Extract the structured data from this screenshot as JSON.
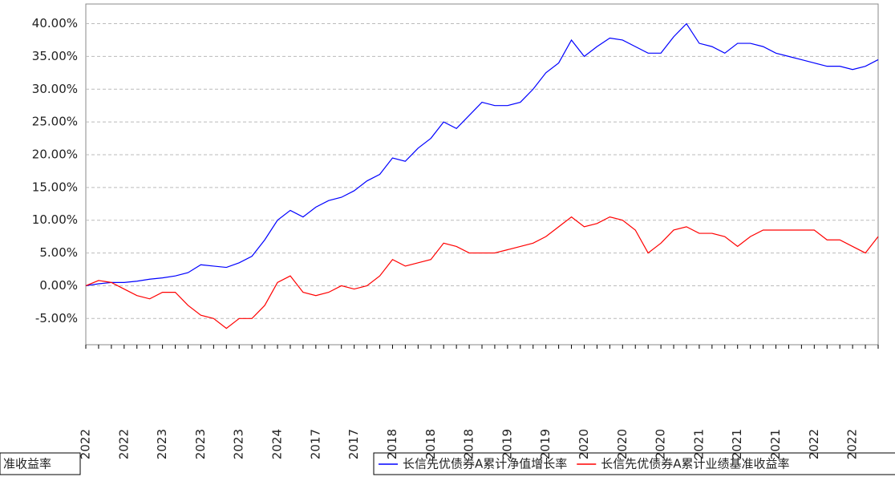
{
  "chart_data": {
    "type": "line",
    "categories": [
      "2022",
      null,
      null,
      "2022",
      null,
      null,
      "2023",
      null,
      null,
      "2023",
      null,
      null,
      "2023",
      null,
      null,
      "2024",
      null,
      null,
      "2017",
      null,
      null,
      "2017",
      null,
      null,
      "2018",
      null,
      null,
      "2018",
      null,
      null,
      "2018",
      null,
      null,
      "2019",
      null,
      null,
      "2019",
      null,
      null,
      "2020",
      null,
      null,
      "2020",
      null,
      null,
      "2020",
      null,
      null,
      "2021",
      null,
      null,
      "2021",
      null,
      null,
      "2021",
      null,
      null,
      "2022",
      null,
      null,
      "2022",
      null,
      null
    ],
    "series": [
      {
        "name": "长信先优债券A累计净值增长率",
        "color": "#0000ff",
        "values": [
          0,
          0.3,
          0.5,
          0.5,
          0.7,
          1.0,
          1.2,
          1.5,
          2.0,
          3.2,
          3.0,
          2.8,
          3.5,
          4.5,
          7.0,
          10.0,
          11.5,
          10.5,
          12.0,
          13.0,
          13.5,
          14.5,
          16.0,
          17.0,
          19.5,
          19.0,
          21.0,
          22.5,
          25.0,
          24.0,
          26.0,
          28.0,
          27.5,
          27.5,
          28.0,
          30.0,
          32.5,
          34.0,
          37.5,
          35.0,
          36.5,
          37.8,
          37.5,
          36.5,
          35.5,
          35.5,
          38.0,
          40.0,
          37.0,
          36.5,
          35.5,
          37.0,
          37.0,
          36.5,
          35.5,
          35.0,
          34.5,
          34.0,
          33.5,
          33.5,
          33.0,
          33.5,
          34.5
        ]
      },
      {
        "name": "长信先优债券A累计业绩基准收益率",
        "color": "#ff0000",
        "values": [
          0,
          0.8,
          0.5,
          -0.5,
          -1.5,
          -2,
          -1,
          -1,
          -3,
          -4.5,
          -5,
          -6.5,
          -5,
          -5,
          -3,
          0.5,
          1.5,
          -1,
          -1.5,
          -1,
          0,
          -0.5,
          0,
          1.5,
          4,
          3,
          3.5,
          4,
          6.5,
          6,
          5,
          5,
          5,
          5.5,
          6,
          6.5,
          7.5,
          9,
          10.5,
          9,
          9.5,
          10.5,
          10,
          8.5,
          5,
          6.5,
          8.5,
          9,
          8,
          8,
          7.5,
          6,
          7.5,
          8.5,
          8.5,
          8.5,
          8.5,
          8.5,
          7,
          7,
          6,
          5,
          7.5
        ]
      }
    ],
    "legend_overflow": "准收益率",
    "ylim": [
      -9,
      43
    ],
    "yticks": [
      {
        "value": -5,
        "label": "-5.00%"
      },
      {
        "value": 0,
        "label": "0.00%"
      },
      {
        "value": 5,
        "label": "5.00%"
      },
      {
        "value": 10,
        "label": "10.00%"
      },
      {
        "value": 15,
        "label": "15.00%"
      },
      {
        "value": 20,
        "label": "20.00%"
      },
      {
        "value": 25,
        "label": "25.00%"
      },
      {
        "value": 30,
        "label": "30.00%"
      },
      {
        "value": 35,
        "label": "35.00%"
      },
      {
        "value": 40,
        "label": "40.00%"
      }
    ],
    "grid": true
  }
}
